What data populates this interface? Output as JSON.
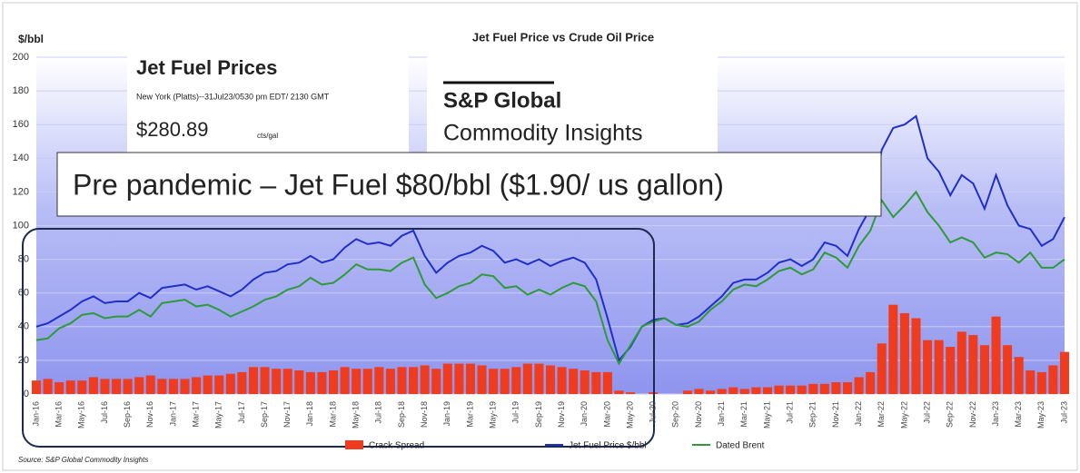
{
  "chart_data": {
    "type": "line",
    "title": "Jet Fuel Price vs Crude Oil Price",
    "y_label": "$/bbl",
    "source": "Source: S&P Global Commodity Insights",
    "overlay": {
      "heading": "Jet Fuel Prices",
      "subheading": "New York (Platts)--31Jul23/0530 pm EDT/ 2130 GMT",
      "price": "$280.89",
      "price_unit": "cts/gal",
      "brand_1": "S&P Global",
      "brand_2": "Commodity Insights",
      "callout": "Pre pandemic – Jet Fuel $80/bbl ($1.90/ us gallon)"
    },
    "categories": [
      "Jan-16",
      null,
      "Mar-16",
      null,
      "May-16",
      null,
      "Jul-16",
      null,
      "Sep-16",
      null,
      "Nov-16",
      null,
      "Jan-17",
      null,
      "Mar-17",
      null,
      "May-17",
      null,
      "Jul-17",
      null,
      "Sep-17",
      null,
      "Nov-17",
      null,
      "Jan-18",
      null,
      "Mar-18",
      null,
      "May-18",
      null,
      "Jul-18",
      null,
      "Sep-18",
      null,
      "Nov-18",
      null,
      "Jan-19",
      null,
      "Mar-19",
      null,
      "May-19",
      null,
      "Jul-19",
      null,
      "Sep-19",
      null,
      "Nov-19",
      null,
      "Jan-20",
      null,
      "Mar-20",
      null,
      "May-20",
      null,
      "Jul-20",
      null,
      "Sep-20",
      null,
      "Nov-20",
      null,
      "Jan-21",
      null,
      "Mar-21",
      null,
      "May-21",
      null,
      "Jul-21",
      null,
      "Sep-21",
      null,
      "Nov-21",
      null,
      "Jan-22",
      null,
      "Mar-22",
      null,
      "May-22",
      null,
      "Jul-22",
      null,
      "Sep-22",
      null,
      "Nov-22",
      null,
      "Jan-23",
      null,
      "Mar-23",
      null,
      "May-23",
      null,
      "Jul-23"
    ],
    "series": [
      {
        "name": "Crack Spread",
        "color": "#f03c1e",
        "kind": "bar",
        "values": [
          8,
          9,
          7,
          8,
          8,
          10,
          9,
          9,
          9,
          10,
          11,
          9,
          9,
          9,
          10,
          11,
          11,
          12,
          13,
          16,
          16,
          15,
          15,
          14,
          13,
          13,
          14,
          16,
          15,
          15,
          16,
          15,
          16,
          16,
          17,
          15,
          18,
          18,
          18,
          17,
          15,
          15,
          16,
          18,
          18,
          17,
          16,
          15,
          14,
          13,
          13,
          2,
          1,
          0,
          1,
          0,
          0,
          2,
          3,
          2,
          3,
          4,
          3,
          4,
          4,
          5,
          5,
          5,
          6,
          6,
          7,
          7,
          10,
          13,
          30,
          53,
          48,
          45,
          32,
          32,
          28,
          37,
          35,
          29,
          46,
          29,
          22,
          14,
          13,
          17,
          25
        ]
      },
      {
        "name": "Jet Fuel Price $/bbl",
        "color": "#1f2fc8",
        "kind": "line",
        "values": [
          40,
          42,
          46,
          50,
          55,
          58,
          54,
          55,
          55,
          60,
          57,
          63,
          64,
          65,
          62,
          64,
          61,
          58,
          62,
          68,
          72,
          73,
          77,
          78,
          82,
          78,
          80,
          87,
          92,
          89,
          90,
          88,
          94,
          97,
          82,
          72,
          78,
          82,
          84,
          88,
          85,
          78,
          80,
          77,
          80,
          76,
          79,
          81,
          78,
          68,
          45,
          20,
          28,
          40,
          44,
          45,
          41,
          42,
          46,
          52,
          58,
          66,
          68,
          68,
          72,
          78,
          80,
          76,
          80,
          90,
          88,
          82,
          98,
          110,
          145,
          158,
          160,
          165,
          140,
          132,
          118,
          130,
          125,
          110,
          130,
          112,
          100,
          98,
          88,
          92,
          105
        ]
      },
      {
        "name": "Dated Brent",
        "color": "#2e9a3a",
        "kind": "line",
        "values": [
          32,
          33,
          39,
          42,
          47,
          48,
          45,
          46,
          46,
          50,
          46,
          54,
          55,
          56,
          52,
          53,
          50,
          46,
          49,
          52,
          56,
          58,
          62,
          64,
          69,
          65,
          66,
          71,
          77,
          74,
          74,
          73,
          78,
          81,
          65,
          57,
          60,
          64,
          66,
          71,
          70,
          63,
          64,
          59,
          62,
          59,
          63,
          66,
          64,
          55,
          32,
          18,
          29,
          40,
          43,
          45,
          41,
          40,
          43,
          50,
          55,
          62,
          65,
          64,
          68,
          73,
          75,
          71,
          74,
          84,
          81,
          75,
          88,
          97,
          115,
          105,
          112,
          120,
          108,
          100,
          90,
          93,
          90,
          81,
          84,
          83,
          78,
          84,
          75,
          75,
          80
        ]
      }
    ],
    "ylim": [
      0,
      200
    ],
    "yticks": [
      0,
      20,
      40,
      60,
      80,
      100,
      120,
      140,
      160,
      180,
      200
    ],
    "grid": true
  }
}
